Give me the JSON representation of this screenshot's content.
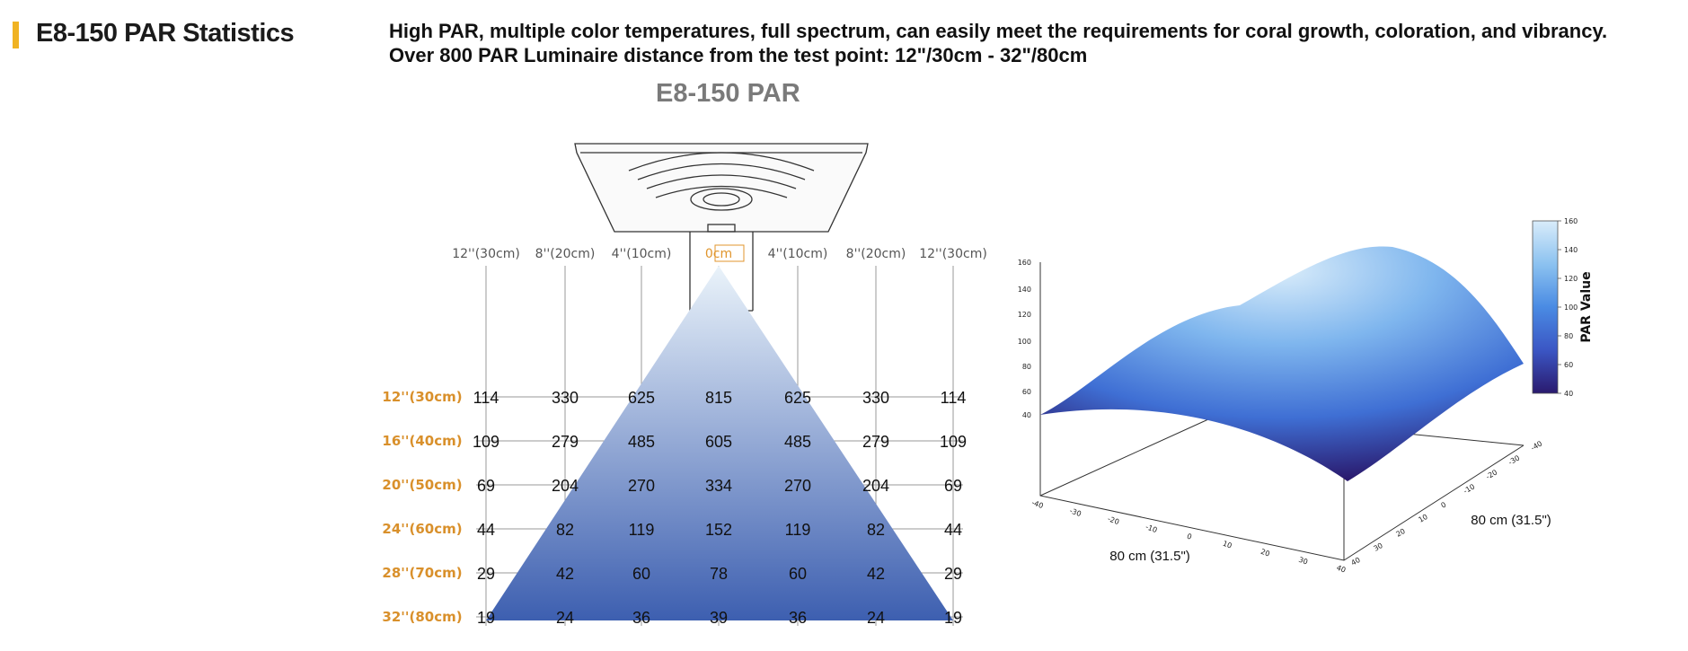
{
  "header": {
    "title": "E8-150 PAR Statistics",
    "accent_color": "#f0b323"
  },
  "description": {
    "line1": "High PAR, multiple color temperatures, full spectrum, can easily meet the requirements for coral growth, coloration, and vibrancy.",
    "line2": "Over 800 PAR Luminaire distance from the test point: 12\"/30cm - 32\"/80cm"
  },
  "chart_data": [
    {
      "type": "table",
      "title": "E8-150 PAR",
      "columns": [
        "12''(30cm)",
        "8''(20cm)",
        "4''(10cm)",
        "0cm",
        "4''(10cm)",
        "8''(20cm)",
        "12''(30cm)"
      ],
      "rows": [
        "12''(30cm)",
        "16''(40cm)",
        "20''(50cm)",
        "24''(60cm)",
        "28''(70cm)",
        "32''(80cm)"
      ],
      "values": [
        [
          114,
          330,
          625,
          815,
          625,
          330,
          114
        ],
        [
          109,
          279,
          485,
          605,
          485,
          279,
          109
        ],
        [
          69,
          204,
          270,
          334,
          270,
          204,
          69
        ],
        [
          44,
          82,
          119,
          152,
          119,
          82,
          44
        ],
        [
          29,
          42,
          60,
          78,
          60,
          42,
          29
        ],
        [
          19,
          24,
          36,
          39,
          36,
          24,
          19
        ]
      ],
      "cone_colors": [
        "#eaf3fa",
        "#3d5fb0"
      ]
    },
    {
      "type": "surface",
      "zlabel": "",
      "xlabel": "80 cm (31.5\")",
      "ylabel": "80 cm (31.5\")",
      "xticks": [
        -40,
        -30,
        -20,
        -10,
        0,
        10,
        20,
        30,
        40
      ],
      "yticks": [
        -40,
        -30,
        -20,
        -10,
        0,
        10,
        20,
        30,
        40
      ],
      "zticks": [
        40,
        60,
        80,
        100,
        120,
        140,
        160
      ],
      "colorbar": {
        "label": "PAR Value",
        "ticks": [
          40,
          60,
          80,
          100,
          120,
          140,
          160
        ],
        "colors": [
          "#2a1a6e",
          "#3b56c4",
          "#4a8be3",
          "#8cc2f0",
          "#d9ecfa"
        ]
      }
    }
  ]
}
